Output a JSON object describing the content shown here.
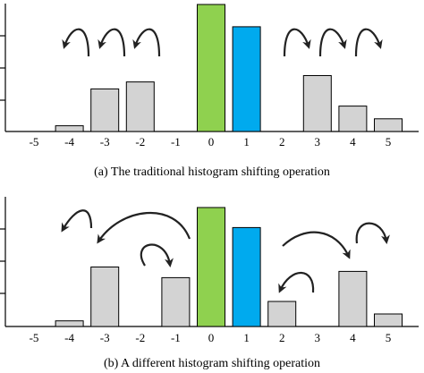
{
  "chart_data": [
    {
      "type": "bar",
      "title": "(a) The traditional histogram shifting operation",
      "categories": [
        "-5",
        "-4",
        "-3",
        "-2",
        "-1",
        "0",
        "1",
        "2",
        "3",
        "4",
        "5"
      ],
      "values": [
        0,
        0.9,
        6.7,
        7.8,
        0,
        20.0,
        16.5,
        0,
        8.8,
        4.0,
        2.0
      ],
      "bar_colors": [
        "#d3d3d3",
        "#d3d3d3",
        "#d3d3d3",
        "#d3d3d3",
        "#d3d3d3",
        "#8fd14f",
        "#00aaee",
        "#d3d3d3",
        "#d3d3d3",
        "#d3d3d3",
        "#d3d3d3"
      ],
      "arrows": [
        {
          "from": -2,
          "to": -3,
          "direction": "left"
        },
        {
          "from": -3,
          "to": -4,
          "direction": "left"
        },
        {
          "from": -1,
          "to": -2,
          "direction": "left"
        },
        {
          "from": 2,
          "to": 3,
          "direction": "right"
        },
        {
          "from": 3,
          "to": 4,
          "direction": "right"
        },
        {
          "from": 4,
          "to": 5,
          "direction": "right"
        }
      ]
    },
    {
      "type": "bar",
      "title": "(b) A different histogram shifting operation",
      "categories": [
        "-5",
        "-4",
        "-3",
        "-2",
        "-1",
        "0",
        "1",
        "2",
        "3",
        "4",
        "5"
      ],
      "values": [
        0,
        0.9,
        9.5,
        0,
        7.8,
        19.0,
        15.8,
        4.0,
        0,
        8.8,
        2.0
      ],
      "bar_colors": [
        "#d3d3d3",
        "#d3d3d3",
        "#d3d3d3",
        "#d3d3d3",
        "#d3d3d3",
        "#8fd14f",
        "#00aaee",
        "#d3d3d3",
        "#d3d3d3",
        "#d3d3d3",
        "#d3d3d3"
      ],
      "arrows": [
        {
          "from": -3,
          "to": -4,
          "direction": "left"
        },
        {
          "from": -1,
          "to": -3,
          "direction": "left"
        },
        {
          "from": -2,
          "to": -1,
          "direction": "right"
        },
        {
          "from": 3,
          "to": 2,
          "direction": "left"
        },
        {
          "from": 2,
          "to": 4,
          "direction": "right"
        },
        {
          "from": 4,
          "to": 5,
          "direction": "right"
        }
      ]
    }
  ],
  "colors": {
    "gray_bar": "#d3d3d3",
    "zero_bar": "#8fd14f",
    "one_bar": "#00aaee"
  }
}
